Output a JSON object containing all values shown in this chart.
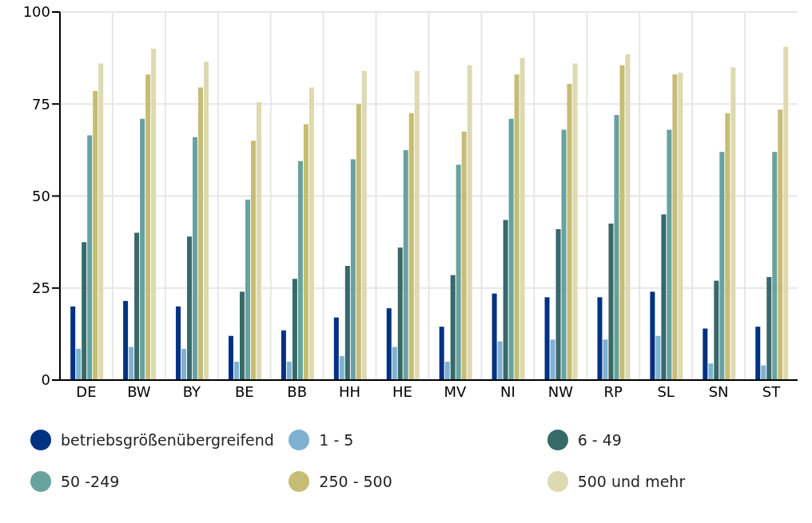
{
  "chart_data": {
    "type": "bar",
    "categories": [
      "DE",
      "BW",
      "BY",
      "BE",
      "BB",
      "HH",
      "HE",
      "MV",
      "NI",
      "NW",
      "RP",
      "SL",
      "SN",
      "ST"
    ],
    "series": [
      {
        "name": "betriebsgrößenübergreifend",
        "color": "#003283",
        "values": [
          20,
          21.5,
          20,
          12,
          13.5,
          17,
          19.5,
          14.5,
          23.5,
          22.5,
          22.5,
          24,
          14,
          14.5
        ]
      },
      {
        "name": "1 - 5",
        "color": "#7fb1d0",
        "values": [
          8.5,
          9,
          8.5,
          5,
          5,
          6.5,
          9,
          5,
          10.5,
          11,
          11,
          12,
          4.5,
          4
        ]
      },
      {
        "name": "6 - 49",
        "color": "#376969",
        "values": [
          37.5,
          40,
          39,
          24,
          27.5,
          31,
          36,
          28.5,
          43.5,
          41,
          42.5,
          45,
          27,
          28
        ]
      },
      {
        "name": "50 -249",
        "color": "#68a29f",
        "values": [
          66.5,
          71,
          66,
          49,
          59.5,
          60,
          62.5,
          58.5,
          71,
          68,
          72,
          68,
          62,
          62
        ]
      },
      {
        "name": "250 - 500",
        "color": "#c6bd74",
        "values": [
          78.5,
          83,
          79.5,
          65,
          69.5,
          75,
          72.5,
          67.5,
          83,
          80.5,
          85.5,
          83,
          72.5,
          73.5
        ]
      },
      {
        "name": "500 und mehr",
        "color": "#ddd9b1",
        "values": [
          86,
          90,
          86.5,
          75.5,
          79.5,
          84,
          84,
          85.5,
          87.5,
          86,
          88.5,
          83.5,
          85,
          90.5
        ]
      }
    ],
    "ylim": [
      0,
      100
    ],
    "yticks": [
      0,
      25,
      50,
      75,
      100
    ],
    "grid": true,
    "legend": "bottom"
  }
}
